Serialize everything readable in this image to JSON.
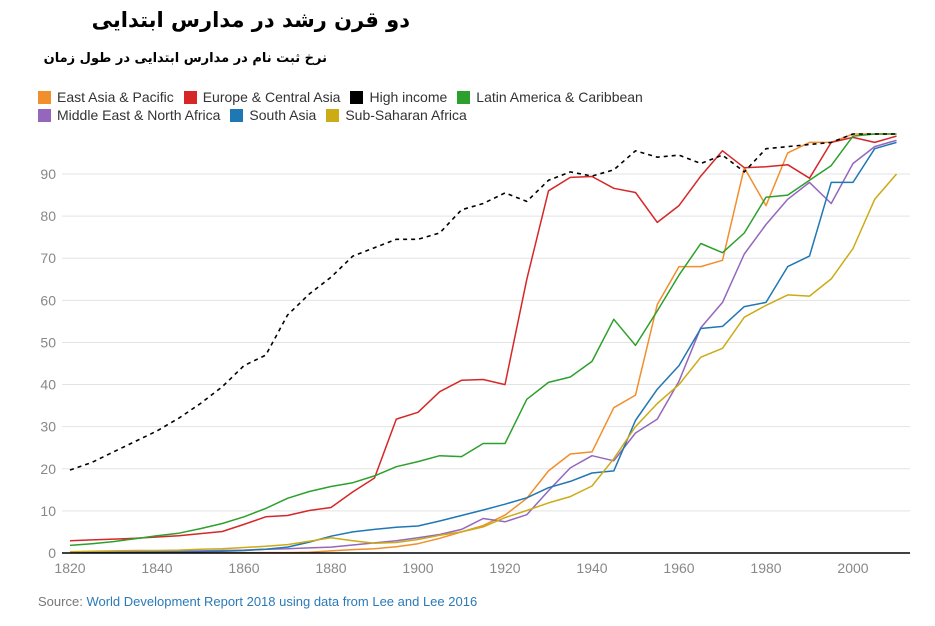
{
  "header": {
    "title": "دو قرن رشد در مدارس ابتدایی",
    "subtitle": "نرخ ثبت نام  در مدارس ابتدایی در طول زمان"
  },
  "source": {
    "label": "Source:",
    "link_text": "World Development Report 2018 using data from Lee and Lee 2016"
  },
  "chart_data": {
    "type": "line",
    "title": "دو قرن رشد در مدارس ابتدایی",
    "subtitle": "نرخ ثبت نام  در مدارس ابتدایی در طول زمان",
    "xlabel": "",
    "ylabel": "",
    "xlim": [
      1820,
      2012
    ],
    "ylim": [
      0,
      100
    ],
    "grid": true,
    "legend_position": "top-left",
    "x_ticks": [
      "1820",
      "1840",
      "1860",
      "1880",
      "1900",
      "1920",
      "1940",
      "1960",
      "1980",
      "2000"
    ],
    "x_tick_values": [
      1820,
      1840,
      1860,
      1880,
      1900,
      1920,
      1940,
      1960,
      1980,
      2000
    ],
    "y_ticks": [
      "0",
      "10",
      "20",
      "30",
      "40",
      "50",
      "60",
      "70",
      "80",
      "90"
    ],
    "y_tick_values": [
      0,
      10,
      20,
      30,
      40,
      50,
      60,
      70,
      80,
      90
    ],
    "x": [
      1820,
      1825,
      1830,
      1835,
      1840,
      1845,
      1850,
      1855,
      1860,
      1865,
      1870,
      1875,
      1880,
      1885,
      1890,
      1895,
      1900,
      1905,
      1910,
      1915,
      1920,
      1925,
      1930,
      1935,
      1940,
      1945,
      1950,
      1955,
      1960,
      1965,
      1970,
      1975,
      1980,
      1985,
      1990,
      1995,
      2000,
      2005,
      2010
    ],
    "series": [
      {
        "name": "East Asia & Pacific",
        "color": "#f28e2b",
        "dashed": false,
        "values": [
          0.1,
          0.1,
          0.1,
          0.1,
          0.1,
          0.1,
          0.1,
          0.1,
          0.1,
          0.1,
          0.1,
          0.2,
          0.5,
          0.8,
          1.0,
          1.5,
          2.2,
          3.5,
          5,
          6.5,
          9,
          13,
          19.5,
          23.5,
          24,
          34.5,
          37.5,
          59,
          68,
          68,
          69.5,
          91.5,
          82.5,
          95,
          97.5,
          97.5,
          99.5,
          99.5,
          99.5
        ]
      },
      {
        "name": "Europe & Central Asia",
        "color": "#d62728",
        "dashed": false,
        "values": [
          2.9,
          3.1,
          3.3,
          3.5,
          3.8,
          4.1,
          4.6,
          5.1,
          6.8,
          8.6,
          8.9,
          10.1,
          10.8,
          14.5,
          17.8,
          31.8,
          33.4,
          38.3,
          41,
          41.2,
          40,
          65,
          86,
          89.2,
          89.4,
          86.6,
          85.6,
          78.5,
          82.5,
          89.5,
          95.5,
          91.5,
          91.7,
          92.2,
          89,
          97.5,
          98.7,
          97.5,
          99
        ]
      },
      {
        "name": "High income",
        "color": "#000000",
        "dashed": true,
        "values": [
          19.7,
          21.5,
          24,
          26.5,
          29,
          32,
          35.5,
          39.5,
          44.5,
          47,
          56.5,
          61.5,
          65.5,
          70.5,
          72.5,
          74.5,
          74.5,
          76,
          81.5,
          83,
          85.5,
          83.5,
          88.5,
          90.5,
          89.5,
          91,
          95.5,
          94,
          94.5,
          92.5,
          94.5,
          90.5,
          96,
          96.5,
          97,
          97.5,
          99.5,
          99.5,
          99.5
        ]
      },
      {
        "name": "Latin America & Caribbean",
        "color": "#2ca02c",
        "dashed": false,
        "values": [
          1.8,
          2.2,
          2.7,
          3.4,
          4.1,
          4.7,
          5.8,
          7.0,
          8.6,
          10.6,
          13,
          14.6,
          15.8,
          16.7,
          18.3,
          20.5,
          21.7,
          23.1,
          22.9,
          26,
          26,
          36.5,
          40.5,
          41.8,
          45.5,
          55.5,
          49.3,
          57.5,
          66,
          73.5,
          71.3,
          76,
          84.5,
          85,
          88.5,
          92,
          99,
          99.5,
          99.5
        ]
      },
      {
        "name": "Middle East & North Africa",
        "color": "#9467bd",
        "dashed": false,
        "values": [
          0.2,
          0.2,
          0.3,
          0.3,
          0.4,
          0.5,
          0.5,
          0.6,
          0.7,
          0.9,
          1.0,
          1.2,
          1.4,
          1.9,
          2.4,
          2.9,
          3.6,
          4.4,
          5.6,
          8.2,
          7.4,
          9.1,
          14.8,
          20.2,
          23.1,
          21.9,
          28.5,
          31.8,
          40.8,
          53.5,
          59.5,
          71,
          78,
          84,
          88,
          83,
          92.5,
          96.5,
          98
        ]
      },
      {
        "name": "South Asia",
        "color": "#1f77b4",
        "dashed": false,
        "values": [
          0.1,
          0.1,
          0.1,
          0.1,
          0.2,
          0.2,
          0.3,
          0.4,
          0.6,
          0.9,
          1.4,
          2.6,
          4.0,
          5.0,
          5.6,
          6.1,
          6.4,
          7.6,
          8.9,
          10.2,
          11.6,
          13.1,
          15.5,
          17,
          19,
          19.5,
          31.5,
          38.9,
          44.5,
          53.3,
          53.8,
          58.5,
          59.5,
          68,
          70.5,
          88,
          88,
          96,
          97.5
        ]
      },
      {
        "name": "Sub-Saharan Africa",
        "color": "#ccab16",
        "dashed": false,
        "values": [
          0.3,
          0.4,
          0.5,
          0.6,
          0.6,
          0.7,
          0.9,
          1.0,
          1.3,
          1.6,
          2.0,
          2.8,
          3.6,
          2.9,
          2.3,
          2.5,
          3.2,
          4.2,
          5.0,
          6.2,
          8.4,
          10.1,
          11.9,
          13.4,
          15.9,
          22.4,
          30,
          35.5,
          40,
          46.5,
          48.6,
          56,
          58.8,
          61.3,
          61,
          65.1,
          72.3,
          84,
          90
        ]
      }
    ]
  }
}
